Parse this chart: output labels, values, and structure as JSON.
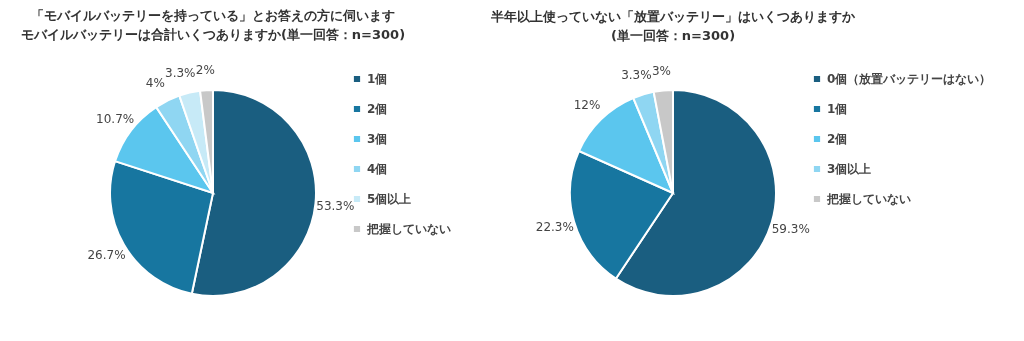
{
  "chart_data": [
    {
      "type": "pie",
      "title": "「モバイルバッテリーを持っている」とお答えの方に伺います",
      "subtitle": "モバイルバッテリーは合計いくつありますか(単一回答：n=300)",
      "categories": [
        "1個",
        "2個",
        "3個",
        "4個",
        "5個以上",
        "把握していない"
      ],
      "values": [
        53.3,
        26.7,
        10.7,
        4,
        3.3,
        2
      ],
      "value_labels": [
        "53.3%",
        "26.7%",
        "10.7%",
        "4%",
        "3.3%",
        "2%"
      ],
      "colors": [
        "#1a5e80",
        "#1776a0",
        "#5bc6ee",
        "#8fd6f2",
        "#c7eaf7",
        "#c8c8c8"
      ],
      "legend": "right"
    },
    {
      "type": "pie",
      "title": "半年以上使っていない「放置バッテリー」はいくつありますか",
      "subtitle": "(単一回答：n=300)",
      "categories": [
        "0個（放置バッテリーはない）",
        "1個",
        "2個",
        "3個以上",
        "把握していない"
      ],
      "values": [
        59.3,
        22.3,
        12,
        3.3,
        3
      ],
      "value_labels": [
        "59.3%",
        "22.3%",
        "12%",
        "3.3%",
        "3%"
      ],
      "colors": [
        "#1a5e80",
        "#1776a0",
        "#5bc6ee",
        "#8fd6f2",
        "#c8c8c8"
      ],
      "legend": "right"
    }
  ]
}
